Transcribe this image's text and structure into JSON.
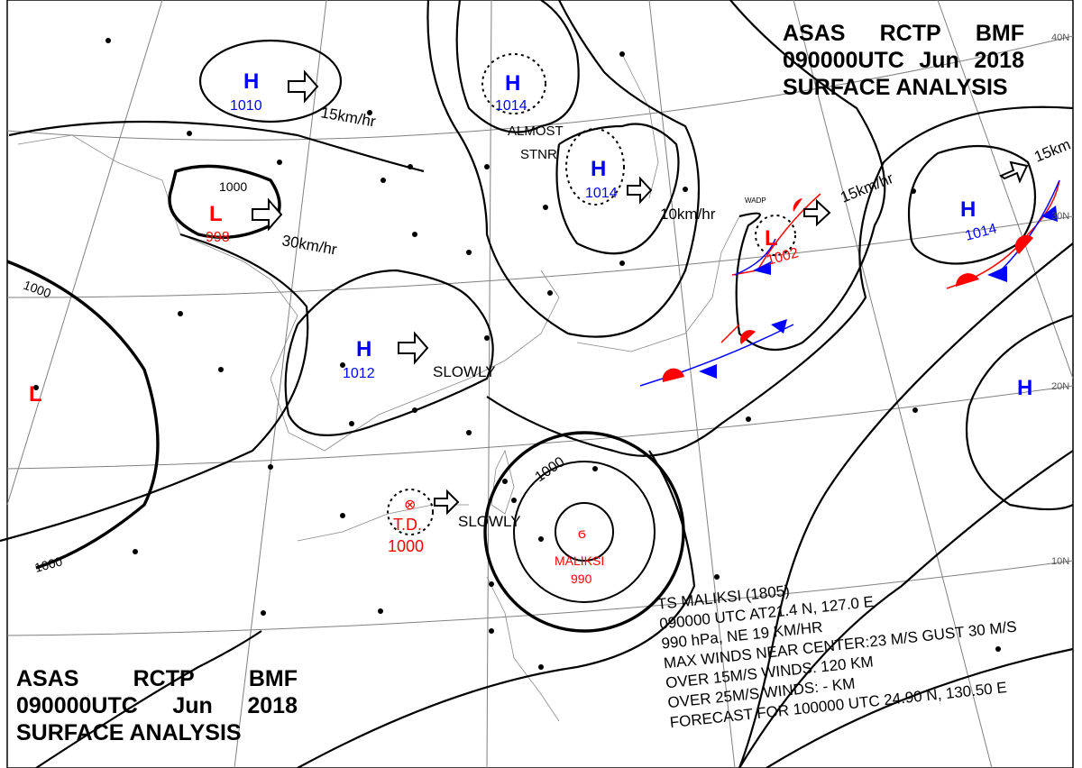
{
  "header": {
    "agency": "ASAS",
    "station": "RCTP",
    "office": "BMF",
    "time": "090000UTC",
    "month": "Jun",
    "year": "2018",
    "title": "SURFACE ANALYSIS"
  },
  "latitudes": [
    "40N",
    "30N",
    "20N",
    "10N"
  ],
  "colors": {
    "high": "#0000ff",
    "low": "#ff0000",
    "isobar": "#000000",
    "grid": "#808080",
    "warm_front": "#ff0000",
    "cold_front": "#0000ff"
  },
  "systems": [
    {
      "type": "H",
      "pressure": "1010"
    },
    {
      "type": "L",
      "pressure": "998"
    },
    {
      "type": "H",
      "pressure": "1014"
    },
    {
      "type": "H",
      "pressure": "1014"
    },
    {
      "type": "H",
      "pressure": "1012"
    },
    {
      "type": "L",
      "pressure": "1002"
    },
    {
      "type": "H",
      "pressure": "1014"
    },
    {
      "type": "L",
      "pressure": ""
    },
    {
      "type": "H",
      "pressure": ""
    },
    {
      "type": "T.D.",
      "pressure": "1000"
    },
    {
      "type": "MALIKSI",
      "pressure": "990"
    }
  ],
  "motions": [
    "15km/hr",
    "30km/hr",
    "ALMOST",
    "STNR",
    "10km/hr",
    "15km/hr",
    "15km",
    "SLOWLY",
    "SLOWLY"
  ],
  "isobar_labels": [
    "1000",
    "1000",
    "1000",
    "1000"
  ],
  "station_label": "WADP",
  "typhoon_info": [
    "TS  MALIKSI  (1805)",
    "090000 UTC  AT21.4 N, 127.0 E",
    "990 hPa, NE  19 KM/HR",
    "MAX WINDS NEAR CENTER:23 M/S GUST 30 M/S",
    "OVER 15M/S WINDS: 120 KM",
    "OVER 25M/S WINDS: - KM",
    "FORECAST FOR 100000 UTC 24.90 N, 130.50 E"
  ]
}
